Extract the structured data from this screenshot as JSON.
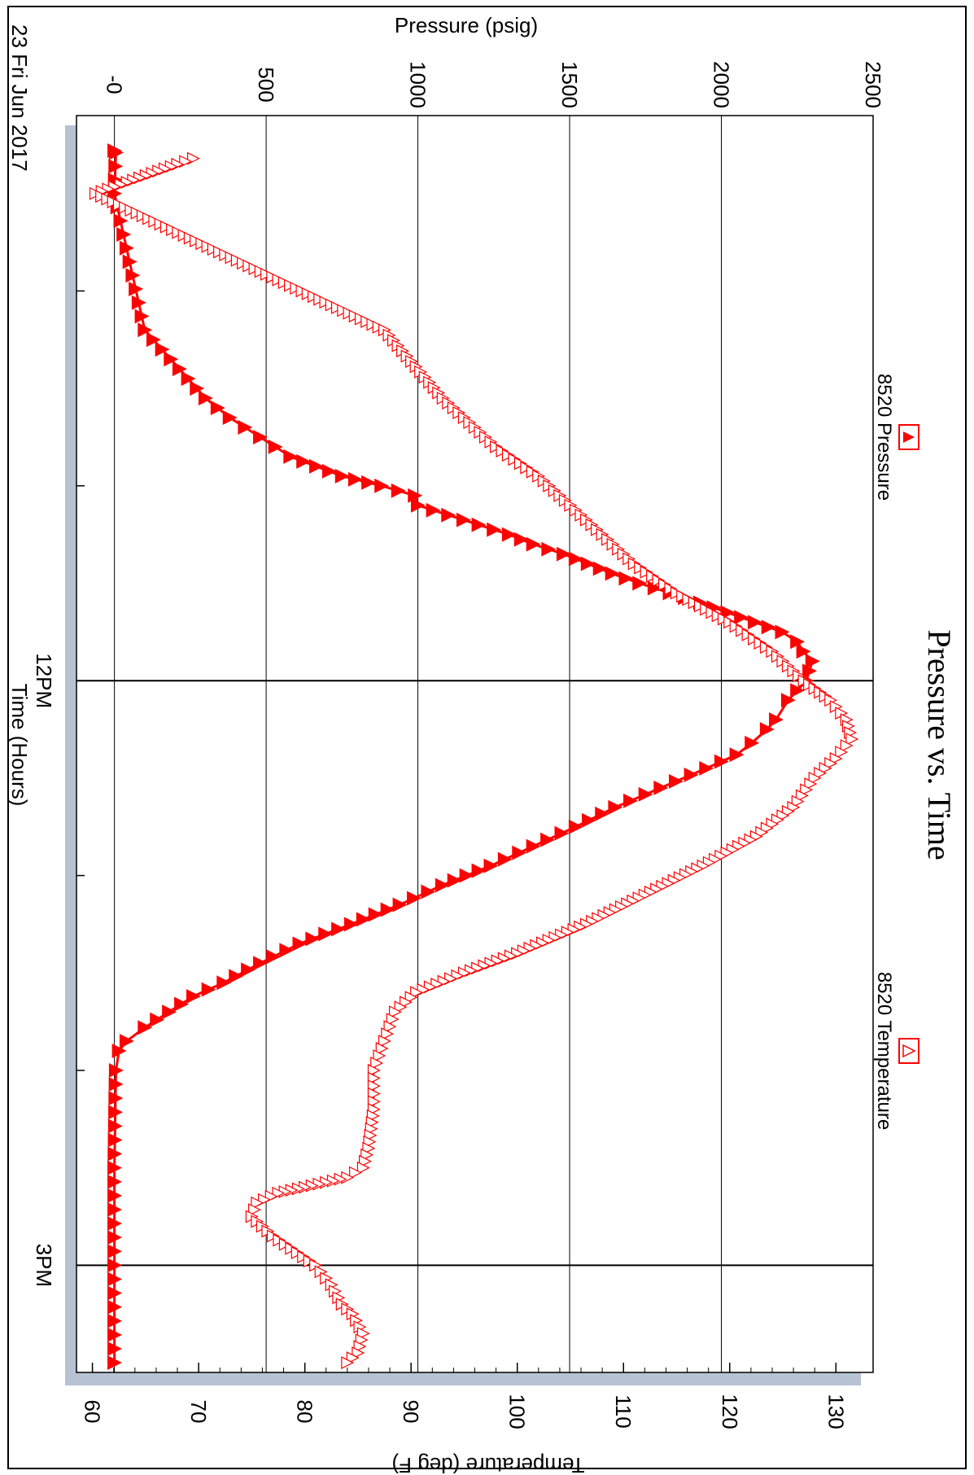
{
  "chart_data": {
    "type": "line",
    "title": "Pressure vs. Time",
    "date_label": "23 Fri Jun 2017",
    "xlabel": "Time (Hours)",
    "ylabel_left": "Pressure (psig)",
    "ylabel_right": "Temperature (deg F)",
    "x_range_hours": [
      9.1,
      15.55
    ],
    "x_ticks": [
      {
        "t": 12,
        "label": "12PM"
      },
      {
        "t": 15,
        "label": "3PM"
      }
    ],
    "x_minor_ticks": [
      10,
      11,
      13,
      14
    ],
    "pressure_axis": {
      "range": [
        -125,
        2500
      ],
      "ticks": [
        {
          "v": 0,
          "label": "-0"
        },
        {
          "v": 500,
          "label": "500"
        },
        {
          "v": 1000,
          "label": "1000"
        },
        {
          "v": 1500,
          "label": "1500"
        },
        {
          "v": 2000,
          "label": "2000"
        },
        {
          "v": 2500,
          "label": "2500"
        }
      ]
    },
    "temperature_axis": {
      "range": [
        58.5,
        133.5
      ],
      "ticks": [
        {
          "v": 60,
          "label": "60"
        },
        {
          "v": 70,
          "label": "70"
        },
        {
          "v": 80,
          "label": "80"
        },
        {
          "v": 90,
          "label": "90"
        },
        {
          "v": 100,
          "label": "100"
        },
        {
          "v": 110,
          "label": "110"
        },
        {
          "v": 120,
          "label": "120"
        },
        {
          "v": 130,
          "label": "130"
        }
      ]
    },
    "grid": true,
    "series": [
      {
        "name": "8520 Pressure",
        "axis": "pressure",
        "color": "#ff0000",
        "marker": "filled-triangle",
        "points": [
          [
            9.28,
            0
          ],
          [
            9.29,
            5
          ],
          [
            9.5,
            0
          ],
          [
            10.2,
            100
          ],
          [
            10.55,
            300
          ],
          [
            10.65,
            380
          ],
          [
            10.75,
            480
          ],
          [
            10.85,
            580
          ],
          [
            10.95,
            750
          ],
          [
            11.0,
            880
          ],
          [
            11.05,
            990
          ],
          [
            11.1,
            1000
          ],
          [
            11.15,
            1100
          ],
          [
            11.2,
            1200
          ],
          [
            11.25,
            1300
          ],
          [
            11.3,
            1380
          ],
          [
            11.35,
            1480
          ],
          [
            11.4,
            1560
          ],
          [
            11.45,
            1640
          ],
          [
            11.5,
            1730
          ],
          [
            11.55,
            1830
          ],
          [
            11.6,
            1930
          ],
          [
            11.65,
            2020
          ],
          [
            11.7,
            2110
          ],
          [
            11.75,
            2200
          ],
          [
            11.8,
            2250
          ],
          [
            11.85,
            2270
          ],
          [
            11.9,
            2300
          ],
          [
            11.95,
            2290
          ],
          [
            12.0,
            2280
          ],
          [
            12.05,
            2250
          ],
          [
            12.1,
            2220
          ],
          [
            12.2,
            2180
          ],
          [
            12.25,
            2150
          ],
          [
            12.32,
            2100
          ],
          [
            12.38,
            2050
          ],
          [
            12.45,
            1950
          ],
          [
            12.55,
            1800
          ],
          [
            12.65,
            1650
          ],
          [
            12.75,
            1520
          ],
          [
            12.85,
            1380
          ],
          [
            12.95,
            1240
          ],
          [
            13.05,
            1080
          ],
          [
            13.15,
            940
          ],
          [
            13.25,
            780
          ],
          [
            13.35,
            610
          ],
          [
            13.45,
            480
          ],
          [
            13.55,
            360
          ],
          [
            13.62,
            260
          ],
          [
            13.7,
            180
          ],
          [
            13.78,
            100
          ],
          [
            13.85,
            40
          ],
          [
            13.9,
            15
          ],
          [
            14.0,
            5
          ],
          [
            14.5,
            0
          ],
          [
            15.0,
            0
          ],
          [
            15.5,
            0
          ]
        ]
      },
      {
        "name": "8520 Temperature",
        "axis": "temperature",
        "color": "#ff0000",
        "marker": "open-triangle",
        "points": [
          [
            9.32,
            69.5
          ],
          [
            9.35,
            68.0
          ],
          [
            9.5,
            60.3
          ],
          [
            10.2,
            87.5
          ],
          [
            10.55,
            93.0
          ],
          [
            10.65,
            95.0
          ],
          [
            10.8,
            98.0
          ],
          [
            10.95,
            102.0
          ],
          [
            11.1,
            105.0
          ],
          [
            11.25,
            108.0
          ],
          [
            11.4,
            111.0
          ],
          [
            11.55,
            115.0
          ],
          [
            11.7,
            120.0
          ],
          [
            11.85,
            124.0
          ],
          [
            12.0,
            127.0
          ],
          [
            12.1,
            129.5
          ],
          [
            12.2,
            131.0
          ],
          [
            12.3,
            131.5
          ],
          [
            12.4,
            130.0
          ],
          [
            12.5,
            128.0
          ],
          [
            12.65,
            126.0
          ],
          [
            12.8,
            122.5
          ],
          [
            12.95,
            117.5
          ],
          [
            13.1,
            112.0
          ],
          [
            13.25,
            106.5
          ],
          [
            13.4,
            100.0
          ],
          [
            13.5,
            95.0
          ],
          [
            13.6,
            90.5
          ],
          [
            13.7,
            88.5
          ],
          [
            13.85,
            87.5
          ],
          [
            14.0,
            86.5
          ],
          [
            14.2,
            86.5
          ],
          [
            14.4,
            86.0
          ],
          [
            14.5,
            85.5
          ],
          [
            14.55,
            84.0
          ],
          [
            14.6,
            80.0
          ],
          [
            14.63,
            77.5
          ],
          [
            14.68,
            75.5
          ],
          [
            14.75,
            75.0
          ],
          [
            14.85,
            77.0
          ],
          [
            15.0,
            81.0
          ],
          [
            15.1,
            82.5
          ],
          [
            15.2,
            83.5
          ],
          [
            15.25,
            84.5
          ],
          [
            15.35,
            85.5
          ],
          [
            15.45,
            85.0
          ],
          [
            15.5,
            84.0
          ]
        ]
      }
    ]
  }
}
